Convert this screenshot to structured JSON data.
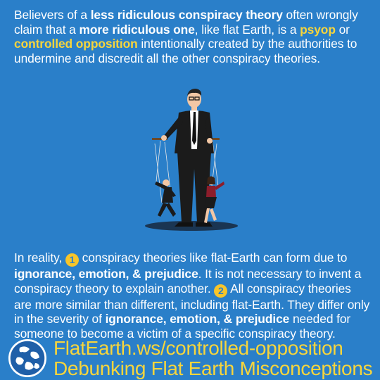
{
  "top_paragraph": {
    "t1": "Believers of a ",
    "b1": "less ridiculous conspiracy theory",
    "t2": " often wrongly claim that a ",
    "b2": "more ridiculous one",
    "t3": ", like flat Earth, is a ",
    "y1": "psyop",
    "t4": " or ",
    "y2": "controlled opposition",
    "t5": " intentionally created by the authorities to undermine and discredit all the other conspiracy theories."
  },
  "bottom_paragraph": {
    "t1": "In reality, ",
    "n1": "1",
    "t2": " conspiracy theories like flat-Earth can form due to ",
    "b1": "ignorance, emotion, & prejudice",
    "t3": ". It is not necessary to invent a conspiracy theory to explain another. ",
    "n2": "2",
    "t4": " All conspiracy theories are more similar than different, including flat-Earth. They differ only in the severity of ",
    "b2": "ignorance, emotion, & prejudice",
    "t5": " needed for someone to become a victim of a specific conspiracy theory."
  },
  "footer": {
    "url": "FlatEarth.ws/controlled-opposition",
    "tagline": "Debunking Flat Earth Misconceptions"
  },
  "illustration": {
    "icon": "puppet-master-icon",
    "colors": {
      "suit": "#1b1b1b",
      "shirt": "#ffffff",
      "skin": "#f2c7a5",
      "skirt": "#8c1d2b",
      "shadow": "#1a3552"
    }
  },
  "logo": {
    "icon": "globe-icon"
  },
  "colors": {
    "background": "#2a7fc9",
    "accent": "#f7d53c",
    "text": "#ffffff"
  }
}
